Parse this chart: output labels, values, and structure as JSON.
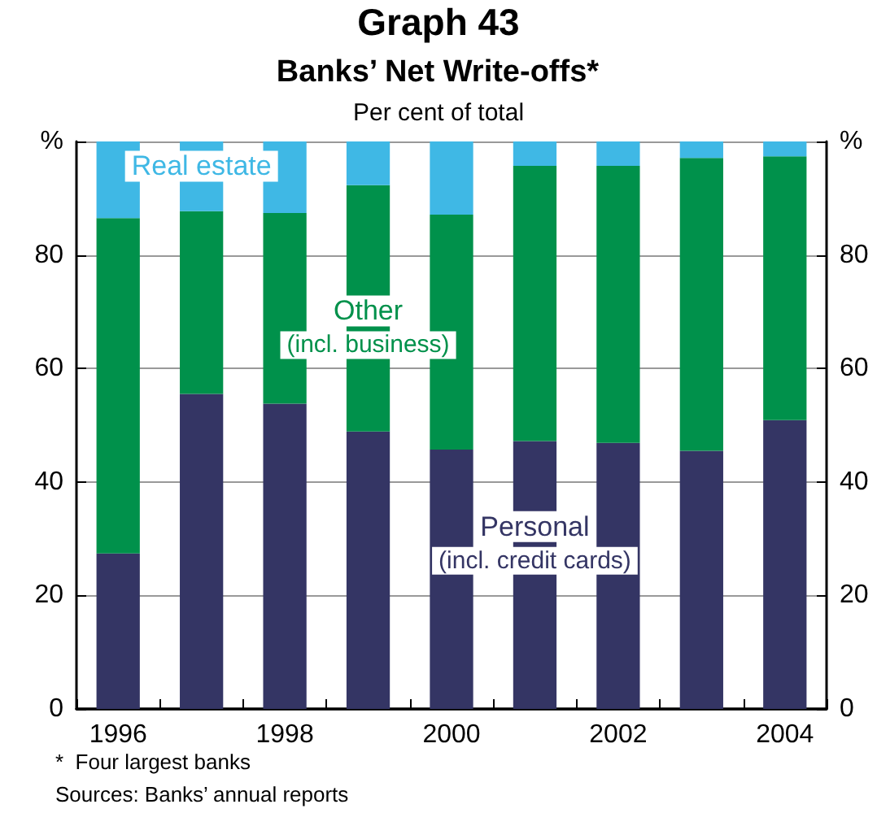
{
  "chart_data": {
    "type": "bar",
    "stacked": true,
    "title": "Graph 43",
    "subtitle": "Banks’ Net Write-offs*",
    "ylabel": "Per cent of total",
    "categories": [
      "1996",
      null,
      "1998",
      null,
      "2000",
      null,
      "2002",
      null,
      "2004"
    ],
    "series": [
      {
        "name": "Personal\n(incl. credit cards)",
        "color": "#343564",
        "values": [
          27.4,
          55.5,
          53.8,
          48.9,
          45.7,
          47.2,
          46.9,
          45.5,
          50.9
        ]
      },
      {
        "name": "Other\n(incl. business)",
        "color": "#00914b",
        "values": [
          59.1,
          32.2,
          33.6,
          43.4,
          41.4,
          48.5,
          48.8,
          51.6,
          46.5
        ]
      },
      {
        "name": "Real estate",
        "color": "#3fb8e5",
        "values": [
          13.5,
          12.3,
          12.6,
          7.7,
          12.9,
          4.3,
          4.3,
          2.9,
          2.6
        ]
      }
    ],
    "ylim": [
      0,
      100
    ],
    "yticks": [
      0,
      20,
      40,
      60,
      80,
      {
        "value": 100,
        "label": "%"
      }
    ],
    "y2lim": [
      0,
      100
    ],
    "y2ticks": [
      0,
      20,
      40,
      60,
      80,
      {
        "value": 100,
        "label": "%"
      }
    ],
    "grid": "y",
    "legend": false,
    "annotations": [
      "*  Four largest banks",
      "Sources: Banks’ annual reports"
    ]
  }
}
